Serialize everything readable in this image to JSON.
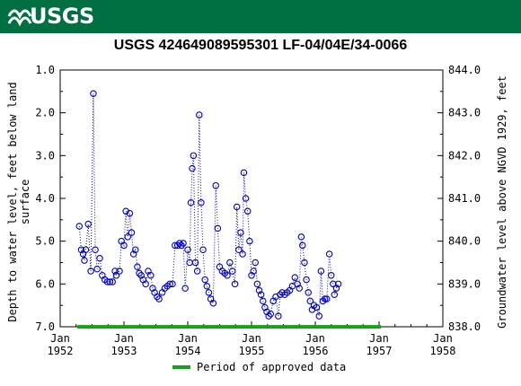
{
  "header": {
    "agency": "USGS"
  },
  "colors": {
    "banner": "#006f41",
    "series": "#0000cc",
    "approved": "#1a9f1a"
  },
  "chart_data": {
    "type": "scatter",
    "title": "USGS 424649089595301 LF-04/04E/34-0066",
    "ylabel_left": "Depth to water level, feet below land surface",
    "ylabel_right": "Groundwater level above NGVD 1929, feet",
    "y_left_range": [
      7.0,
      1.0
    ],
    "y_right_range": [
      838.0,
      844.0
    ],
    "y_left_ticks": [
      "1.0",
      "2.0",
      "3.0",
      "4.0",
      "5.0",
      "6.0",
      "7.0"
    ],
    "y_right_ticks": [
      "844.0",
      "843.0",
      "842.0",
      "841.0",
      "840.0",
      "839.0",
      "838.0"
    ],
    "x_range": [
      1952.0,
      1958.0
    ],
    "x_ticks": [
      {
        "month": "Jan",
        "year": "1952"
      },
      {
        "month": "Jan",
        "year": "1953"
      },
      {
        "month": "Jan",
        "year": "1954"
      },
      {
        "month": "Jan",
        "year": "1955"
      },
      {
        "month": "Jan",
        "year": "1956"
      },
      {
        "month": "Jan",
        "year": "1957"
      },
      {
        "month": "Jan",
        "year": "1958"
      }
    ],
    "grid": false,
    "approved_period": {
      "start": 1952.27,
      "end": 1957.03,
      "label": "Period of approved data"
    },
    "series": [
      {
        "line_style": "dotted",
        "marker": "open-circle",
        "points": [
          [
            1952.3,
            4.65
          ],
          [
            1952.33,
            5.2
          ],
          [
            1952.36,
            5.3
          ],
          [
            1952.38,
            5.45
          ],
          [
            1952.4,
            5.2
          ],
          [
            1952.44,
            4.6
          ],
          [
            1952.48,
            5.7
          ],
          [
            1952.52,
            1.55
          ],
          [
            1952.55,
            5.2
          ],
          [
            1952.58,
            5.65
          ],
          [
            1952.62,
            5.4
          ],
          [
            1952.66,
            5.8
          ],
          [
            1952.7,
            5.9
          ],
          [
            1952.74,
            5.95
          ],
          [
            1952.78,
            5.95
          ],
          [
            1952.82,
            5.95
          ],
          [
            1952.86,
            5.7
          ],
          [
            1952.88,
            5.8
          ],
          [
            1952.93,
            5.7
          ],
          [
            1952.96,
            5.0
          ],
          [
            1953.0,
            5.1
          ],
          [
            1953.03,
            4.3
          ],
          [
            1953.06,
            4.9
          ],
          [
            1953.09,
            4.35
          ],
          [
            1953.12,
            4.8
          ],
          [
            1953.15,
            5.3
          ],
          [
            1953.18,
            5.2
          ],
          [
            1953.21,
            5.6
          ],
          [
            1953.24,
            5.75
          ],
          [
            1953.27,
            5.8
          ],
          [
            1953.3,
            5.9
          ],
          [
            1953.34,
            6.0
          ],
          [
            1953.38,
            5.7
          ],
          [
            1953.42,
            5.8
          ],
          [
            1953.45,
            6.1
          ],
          [
            1953.48,
            6.2
          ],
          [
            1953.52,
            6.3
          ],
          [
            1953.55,
            6.35
          ],
          [
            1953.6,
            6.2
          ],
          [
            1953.64,
            6.1
          ],
          [
            1953.68,
            6.05
          ],
          [
            1953.72,
            6.0
          ],
          [
            1953.76,
            6.0
          ],
          [
            1953.8,
            5.1
          ],
          [
            1953.84,
            5.1
          ],
          [
            1953.87,
            5.05
          ],
          [
            1953.9,
            5.1
          ],
          [
            1953.93,
            5.05
          ],
          [
            1953.96,
            6.1
          ],
          [
            1954.0,
            5.2
          ],
          [
            1954.03,
            5.5
          ],
          [
            1954.05,
            4.1
          ],
          [
            1954.07,
            3.3
          ],
          [
            1954.09,
            3.0
          ],
          [
            1954.12,
            5.5
          ],
          [
            1954.15,
            5.7
          ],
          [
            1954.18,
            2.05
          ],
          [
            1954.21,
            4.1
          ],
          [
            1954.24,
            5.2
          ],
          [
            1954.27,
            5.9
          ],
          [
            1954.3,
            6.05
          ],
          [
            1954.33,
            6.2
          ],
          [
            1954.36,
            6.35
          ],
          [
            1954.4,
            6.45
          ],
          [
            1954.44,
            3.7
          ],
          [
            1954.47,
            4.7
          ],
          [
            1954.5,
            5.6
          ],
          [
            1954.54,
            5.7
          ],
          [
            1954.58,
            5.75
          ],
          [
            1954.62,
            5.8
          ],
          [
            1954.66,
            5.5
          ],
          [
            1954.7,
            5.7
          ],
          [
            1954.74,
            6.0
          ],
          [
            1954.77,
            4.2
          ],
          [
            1954.8,
            5.2
          ],
          [
            1954.83,
            4.8
          ],
          [
            1954.86,
            5.3
          ],
          [
            1954.88,
            3.4
          ],
          [
            1954.91,
            4.0
          ],
          [
            1954.94,
            4.3
          ],
          [
            1954.97,
            5.0
          ],
          [
            1955.0,
            5.8
          ],
          [
            1955.03,
            5.7
          ],
          [
            1955.06,
            5.5
          ],
          [
            1955.09,
            6.0
          ],
          [
            1955.12,
            6.15
          ],
          [
            1955.15,
            6.25
          ],
          [
            1955.18,
            6.4
          ],
          [
            1955.21,
            6.55
          ],
          [
            1955.24,
            6.65
          ],
          [
            1955.27,
            6.75
          ],
          [
            1955.3,
            6.7
          ],
          [
            1955.34,
            6.4
          ],
          [
            1955.38,
            6.3
          ],
          [
            1955.42,
            6.75
          ],
          [
            1955.45,
            6.25
          ],
          [
            1955.48,
            6.2
          ],
          [
            1955.52,
            6.25
          ],
          [
            1955.56,
            6.2
          ],
          [
            1955.6,
            6.15
          ],
          [
            1955.64,
            6.05
          ],
          [
            1955.68,
            5.85
          ],
          [
            1955.72,
            6.0
          ],
          [
            1955.75,
            6.1
          ],
          [
            1955.78,
            4.9
          ],
          [
            1955.8,
            5.1
          ],
          [
            1955.83,
            5.5
          ],
          [
            1955.86,
            5.9
          ],
          [
            1955.89,
            6.2
          ],
          [
            1955.92,
            6.4
          ],
          [
            1955.95,
            6.6
          ],
          [
            1955.98,
            6.5
          ],
          [
            1956.02,
            6.55
          ],
          [
            1956.06,
            6.75
          ],
          [
            1956.09,
            5.7
          ],
          [
            1956.12,
            6.4
          ],
          [
            1956.15,
            6.35
          ],
          [
            1956.18,
            6.35
          ],
          [
            1956.22,
            5.3
          ],
          [
            1956.25,
            5.8
          ],
          [
            1956.28,
            6.0
          ],
          [
            1956.3,
            6.25
          ],
          [
            1956.33,
            6.1
          ],
          [
            1956.36,
            6.0
          ]
        ]
      }
    ]
  }
}
